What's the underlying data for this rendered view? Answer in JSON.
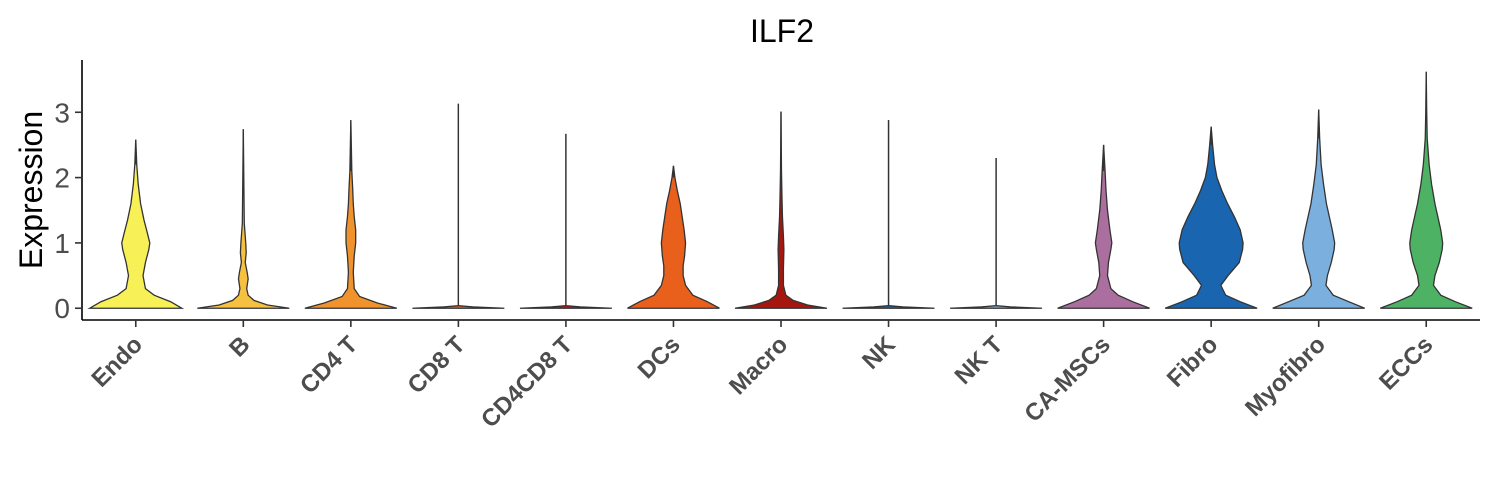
{
  "chart_data": {
    "type": "violin",
    "title": "ILF2",
    "xlabel": "",
    "ylabel": "Expression",
    "ylim": [
      -0.18,
      3.8
    ],
    "yticks": [
      0,
      1,
      2,
      3
    ],
    "legend": "none",
    "grid": false,
    "categories": [
      "Endo",
      "B",
      "CD4 T",
      "CD8 T",
      "CD4CD8 T",
      "DCs",
      "Macro",
      "NK",
      "NK T",
      "CA-MSCs",
      "Fibro",
      "Myofibro",
      "ECCs"
    ],
    "series": [
      {
        "category": "Endo",
        "color": "#F7F056",
        "max": 2.58,
        "density": [
          [
            0,
            0.95
          ],
          [
            0.1,
            0.72
          ],
          [
            0.2,
            0.38
          ],
          [
            0.3,
            0.2
          ],
          [
            0.5,
            0.15
          ],
          [
            0.7,
            0.2
          ],
          [
            0.9,
            0.27
          ],
          [
            1.0,
            0.29
          ],
          [
            1.15,
            0.24
          ],
          [
            1.35,
            0.17
          ],
          [
            1.6,
            0.1
          ],
          [
            1.9,
            0.05
          ],
          [
            2.2,
            0.02
          ],
          [
            2.58,
            0.0
          ]
        ]
      },
      {
        "category": "B",
        "color": "#F6C141",
        "max": 2.74,
        "density": [
          [
            0,
            0.95
          ],
          [
            0.05,
            0.5
          ],
          [
            0.12,
            0.22
          ],
          [
            0.2,
            0.1
          ],
          [
            0.3,
            0.07
          ],
          [
            0.45,
            0.1
          ],
          [
            0.55,
            0.08
          ],
          [
            0.7,
            0.04
          ],
          [
            0.85,
            0.06
          ],
          [
            1.0,
            0.05
          ],
          [
            1.3,
            0.02
          ],
          [
            2.0,
            0.01
          ],
          [
            2.74,
            0.0
          ]
        ]
      },
      {
        "category": "CD4 T",
        "color": "#F1932D",
        "max": 2.88,
        "density": [
          [
            0,
            0.95
          ],
          [
            0.08,
            0.55
          ],
          [
            0.18,
            0.18
          ],
          [
            0.3,
            0.07
          ],
          [
            0.55,
            0.05
          ],
          [
            0.8,
            0.07
          ],
          [
            1.0,
            0.1
          ],
          [
            1.2,
            0.1
          ],
          [
            1.4,
            0.07
          ],
          [
            1.6,
            0.05
          ],
          [
            1.8,
            0.04
          ],
          [
            2.1,
            0.02
          ],
          [
            2.88,
            0.0
          ]
        ]
      },
      {
        "category": "CD8 T",
        "color": "#E8601C",
        "max": 3.13,
        "density": [
          [
            0,
            0.95
          ],
          [
            0.02,
            0.3
          ],
          [
            0.04,
            0.0
          ],
          [
            3.13,
            0.0
          ]
        ]
      },
      {
        "category": "CD4CD8 T",
        "color": "#DC050C",
        "max": 2.67,
        "density": [
          [
            0,
            0.95
          ],
          [
            0.02,
            0.3
          ],
          [
            0.04,
            0.0
          ],
          [
            2.67,
            0.0
          ]
        ]
      },
      {
        "category": "DCs",
        "color": "#E8601C",
        "max": 2.18,
        "density": [
          [
            0,
            0.95
          ],
          [
            0.1,
            0.7
          ],
          [
            0.2,
            0.4
          ],
          [
            0.35,
            0.25
          ],
          [
            0.5,
            0.2
          ],
          [
            0.65,
            0.2
          ],
          [
            0.8,
            0.23
          ],
          [
            1.0,
            0.25
          ],
          [
            1.2,
            0.22
          ],
          [
            1.4,
            0.18
          ],
          [
            1.6,
            0.14
          ],
          [
            1.8,
            0.08
          ],
          [
            2.0,
            0.03
          ],
          [
            2.18,
            0.0
          ]
        ]
      },
      {
        "category": "Macro",
        "color": "#A5170E",
        "max": 3.01,
        "density": [
          [
            0,
            0.95
          ],
          [
            0.05,
            0.55
          ],
          [
            0.12,
            0.25
          ],
          [
            0.2,
            0.1
          ],
          [
            0.35,
            0.05
          ],
          [
            0.6,
            0.05
          ],
          [
            0.9,
            0.06
          ],
          [
            1.1,
            0.05
          ],
          [
            1.4,
            0.03
          ],
          [
            1.7,
            0.02
          ],
          [
            2.1,
            0.01
          ],
          [
            3.01,
            0.0
          ]
        ]
      },
      {
        "category": "NK",
        "color": "#1965B0",
        "max": 2.88,
        "density": [
          [
            0,
            0.95
          ],
          [
            0.02,
            0.3
          ],
          [
            0.04,
            0.0
          ],
          [
            2.88,
            0.0
          ]
        ]
      },
      {
        "category": "NK T",
        "color": "#7BAFDE",
        "max": 2.3,
        "density": [
          [
            0,
            0.95
          ],
          [
            0.02,
            0.3
          ],
          [
            0.04,
            0.0
          ],
          [
            2.3,
            0.0
          ]
        ]
      },
      {
        "category": "CA-MSCs",
        "color": "#AA6F9E",
        "max": 2.5,
        "density": [
          [
            0,
            0.95
          ],
          [
            0.1,
            0.6
          ],
          [
            0.2,
            0.3
          ],
          [
            0.3,
            0.15
          ],
          [
            0.5,
            0.08
          ],
          [
            0.7,
            0.1
          ],
          [
            0.9,
            0.15
          ],
          [
            1.0,
            0.17
          ],
          [
            1.2,
            0.13
          ],
          [
            1.5,
            0.08
          ],
          [
            1.8,
            0.05
          ],
          [
            2.1,
            0.03
          ],
          [
            2.5,
            0.0
          ]
        ]
      },
      {
        "category": "Fibro",
        "color": "#1965B0",
        "max": 2.78,
        "density": [
          [
            0,
            0.95
          ],
          [
            0.1,
            0.6
          ],
          [
            0.2,
            0.3
          ],
          [
            0.35,
            0.2
          ],
          [
            0.5,
            0.35
          ],
          [
            0.7,
            0.58
          ],
          [
            0.9,
            0.65
          ],
          [
            1.0,
            0.66
          ],
          [
            1.2,
            0.6
          ],
          [
            1.4,
            0.48
          ],
          [
            1.6,
            0.34
          ],
          [
            1.8,
            0.22
          ],
          [
            2.0,
            0.12
          ],
          [
            2.2,
            0.07
          ],
          [
            2.5,
            0.03
          ],
          [
            2.78,
            0.0
          ]
        ]
      },
      {
        "category": "Myofibro",
        "color": "#7BAFDE",
        "max": 3.04,
        "density": [
          [
            0,
            0.95
          ],
          [
            0.1,
            0.62
          ],
          [
            0.2,
            0.3
          ],
          [
            0.35,
            0.15
          ],
          [
            0.5,
            0.18
          ],
          [
            0.7,
            0.26
          ],
          [
            0.9,
            0.32
          ],
          [
            1.0,
            0.33
          ],
          [
            1.2,
            0.28
          ],
          [
            1.4,
            0.22
          ],
          [
            1.6,
            0.16
          ],
          [
            1.9,
            0.1
          ],
          [
            2.2,
            0.05
          ],
          [
            2.6,
            0.02
          ],
          [
            3.04,
            0.0
          ]
        ]
      },
      {
        "category": "ECCs",
        "color": "#4EB265",
        "max": 3.62,
        "density": [
          [
            0,
            0.95
          ],
          [
            0.1,
            0.6
          ],
          [
            0.2,
            0.3
          ],
          [
            0.35,
            0.15
          ],
          [
            0.5,
            0.18
          ],
          [
            0.7,
            0.27
          ],
          [
            0.9,
            0.33
          ],
          [
            1.0,
            0.34
          ],
          [
            1.2,
            0.3
          ],
          [
            1.4,
            0.24
          ],
          [
            1.6,
            0.18
          ],
          [
            1.9,
            0.11
          ],
          [
            2.2,
            0.06
          ],
          [
            2.6,
            0.02
          ],
          [
            3.0,
            0.01
          ],
          [
            3.62,
            0.0
          ]
        ]
      }
    ]
  }
}
